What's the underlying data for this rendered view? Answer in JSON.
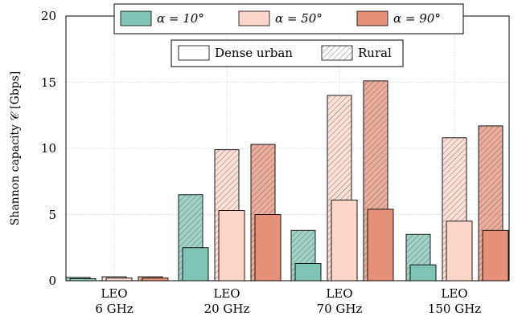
{
  "chart_data": {
    "type": "bar",
    "ylabel": "Shannon capacity 𝒞 [Gbps]",
    "ylim": [
      0,
      20
    ],
    "yticks": [
      "0",
      "5",
      "10",
      "15",
      "20"
    ],
    "grid": true,
    "categories": [
      {
        "line1": "LEO",
        "line2": "6 GHz"
      },
      {
        "line1": "LEO",
        "line2": "20 GHz"
      },
      {
        "line1": "LEO",
        "line2": "70 GHz"
      },
      {
        "line1": "LEO",
        "line2": "150 GHz"
      }
    ],
    "series": [
      {
        "name": "α = 10°",
        "color": "#7fc4b5",
        "rural": [
          0.25,
          6.5,
          3.8,
          3.5
        ],
        "dense_urban": [
          0.15,
          2.5,
          1.3,
          1.2
        ]
      },
      {
        "name": "α = 50°",
        "color": "#fdd5c9",
        "rural": [
          0.3,
          9.9,
          14.0,
          10.8
        ],
        "dense_urban": [
          0.2,
          5.3,
          6.1,
          4.5
        ]
      },
      {
        "name": "α = 90°",
        "color": "#e5917a",
        "rural": [
          0.3,
          10.3,
          15.1,
          11.7
        ],
        "dense_urban": [
          0.2,
          5.0,
          5.4,
          3.8
        ]
      }
    ],
    "environment_legend": [
      "Dense urban",
      "Rural"
    ],
    "legend_placement": "top"
  }
}
